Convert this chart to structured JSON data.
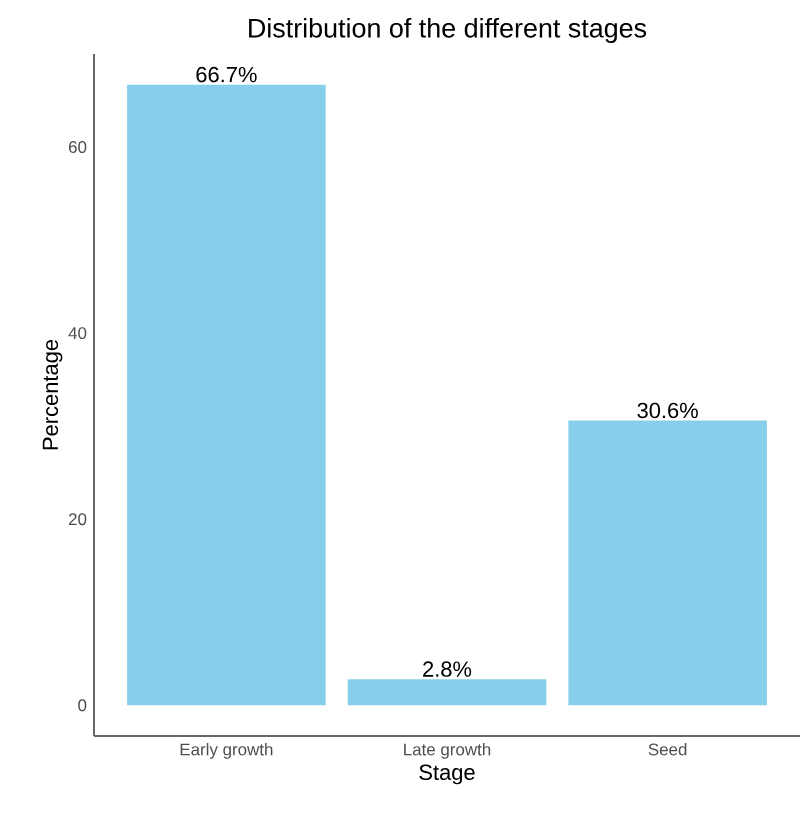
{
  "chart_data": {
    "type": "bar",
    "title": "Distribution of the different stages",
    "xlabel": "Stage",
    "ylabel": "Percentage",
    "categories": [
      "Early growth",
      "Late growth",
      "Seed"
    ],
    "values": [
      66.7,
      2.8,
      30.6
    ],
    "value_labels": [
      "66.7%",
      "2.8%",
      "30.6%"
    ],
    "color": "#87ceeb",
    "ylim": [
      -3.3,
      70
    ],
    "yticks": [
      0,
      20,
      40,
      60
    ],
    "grid": false
  }
}
